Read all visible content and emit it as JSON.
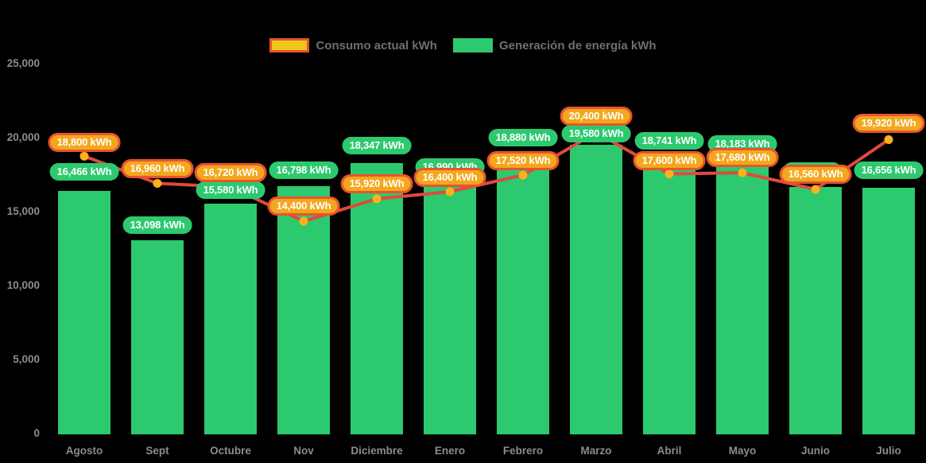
{
  "chart": {
    "background": "#000000",
    "legend": {
      "items": [
        {
          "label": "Consumo actual kWh",
          "swatch_fill": "#f2c71b",
          "swatch_border": "#e8542f"
        },
        {
          "label": "Generación de energía kWh",
          "swatch_fill": "#2dc96e",
          "swatch_border": "#2dc96e"
        }
      ]
    },
    "y_axis": {
      "tick_labels": [
        "25,000",
        "20,000",
        "15,000",
        "10,000",
        "5,000",
        "0"
      ],
      "tick_values": [
        25000,
        20000,
        15000,
        10000,
        5000,
        0
      ]
    },
    "chart_data": {
      "type": "bar",
      "categories": [
        "Agosto",
        "Sept",
        "Octubre",
        "Nov",
        "Diciembre",
        "Enero",
        "Febrero",
        "Marzo",
        "Abril",
        "Mayo",
        "Junio",
        "Julio"
      ],
      "series": [
        {
          "name": "Generación de energía kWh",
          "type": "bar",
          "color": "#2dc96e",
          "values": [
            16466,
            13098,
            15580,
            16798,
            18347,
            16990,
            18880,
            19580,
            18741,
            18183,
            16740,
            16656
          ],
          "labels": [
            "16,466 kWh",
            "13,098 kWh",
            "15,580 kWh",
            "16,798 kWh",
            "18,347 kWh",
            "16,990 kWh",
            "18,880 kWh",
            "19,580 kWh",
            "18,741 kWh",
            "18,183 kWh",
            null,
            "16,656 kWh"
          ]
        },
        {
          "name": "Consumo actual kWh",
          "type": "line",
          "color": "#df4a3c",
          "marker_color": "#ffaf20",
          "values": [
            18800,
            16960,
            16720,
            14400,
            15920,
            16400,
            17520,
            20400,
            17600,
            17680,
            16560,
            19920
          ],
          "labels": [
            "18,800 kWh",
            "16,960 kWh",
            "16,720 kWh",
            "14,400 kWh",
            "15,920 kWh",
            "16,400 kWh",
            "17,520 kWh",
            "20,400 kWh",
            "17,600 kWh",
            "17,680 kWh",
            "16,560 kWh",
            "19,920 kWh"
          ]
        }
      ],
      "ylim": [
        0,
        25000
      ],
      "grid": false,
      "legend_position": "top-center"
    }
  }
}
